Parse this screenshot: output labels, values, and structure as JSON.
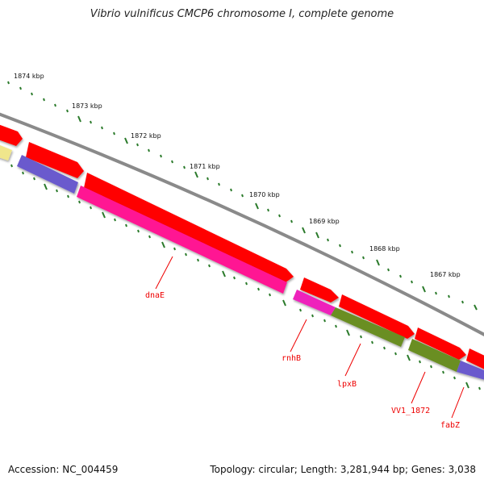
{
  "title": "Vibrio vulnificus CMCP6 chromosome I, complete genome",
  "footer": {
    "accession": "Accession: NC_004459",
    "summary": "Topology: circular; Length: 3,281,944 bp; Genes: 3,038"
  },
  "ticks": [
    "1874 kbp",
    "1873 kbp",
    "1872 kbp",
    "1871 kbp",
    "1870 kbp",
    "1869 kbp",
    "1868 kbp",
    "1867 kbp"
  ],
  "genes": [
    "dnaE",
    "rnhB",
    "lpxB",
    "VV1_1872",
    "fabZ"
  ],
  "colors": {
    "backbone": "#8a8a8a",
    "forward_cds": "#ff0000",
    "dnaE": "#ff1493",
    "rnhB": "#ee22bb",
    "lpxB": "#6b8e23",
    "VV1_1872": "#6b8e23",
    "fabZ": "#6a5acd",
    "pale": "#f0e68c",
    "ticks": "#2a7a2a",
    "labels": "#ee0000"
  }
}
